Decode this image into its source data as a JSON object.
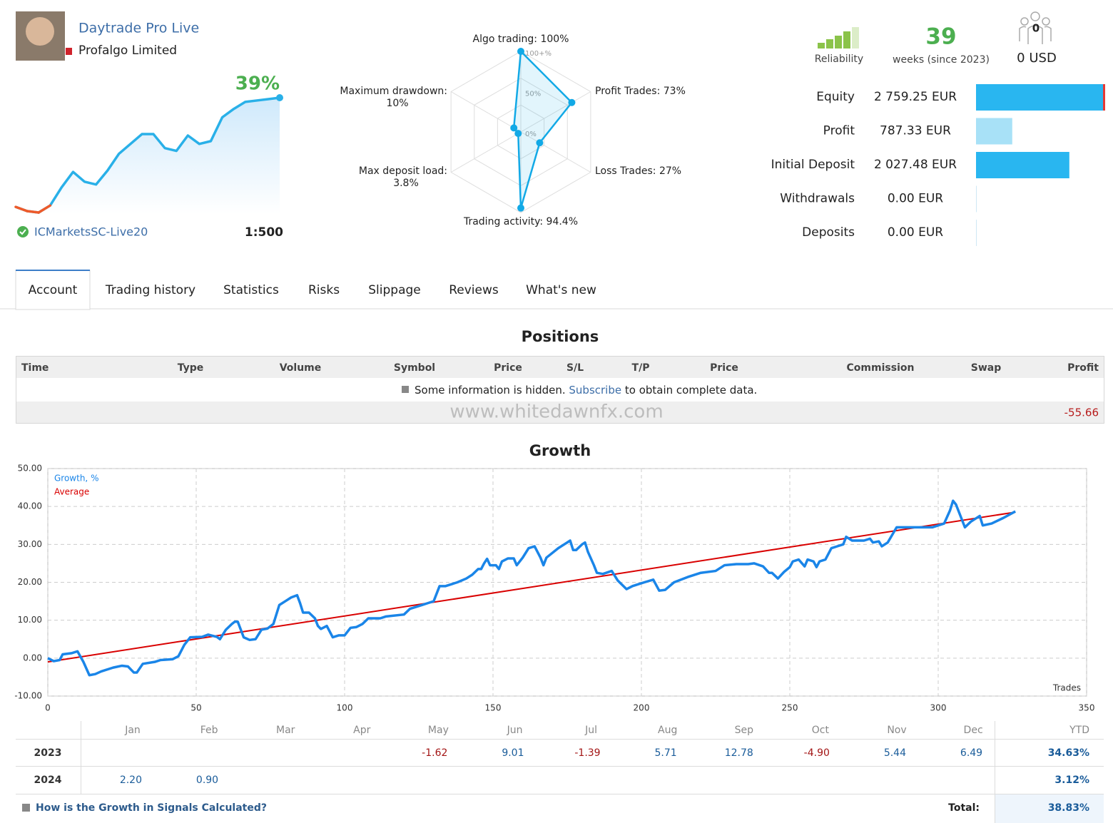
{
  "header": {
    "name": "Daytrade Pro Live",
    "company": "Profalgo Limited",
    "growth": "39%",
    "broker": "ICMarketsSC-Live20",
    "leverage": "1:500"
  },
  "sparkline": {
    "type": "line",
    "color": "#29b0e8",
    "loss_color": "#ee5a2a",
    "values": [
      0,
      -1.5,
      -2,
      0.5,
      7,
      12.5,
      9,
      8,
      13,
      19,
      22.5,
      26,
      26,
      21,
      20,
      25.5,
      22.5,
      23.5,
      32,
      35,
      37.5,
      38,
      38.5,
      39
    ]
  },
  "radar": {
    "type": "radar",
    "color": "#12a9e6",
    "axes": [
      "Algo trading:",
      "Profit Trades:",
      "Loss Trades:",
      "Trading activity:",
      "Max deposit load:",
      "Maximum drawdown:"
    ],
    "values": [
      100,
      73,
      27,
      94.4,
      3.8,
      10
    ],
    "value_labels": [
      "100%",
      "73%",
      "27%",
      "94.4%",
      "3.8%",
      "10%"
    ],
    "ring_labels": [
      "100+%",
      "50%",
      "0%"
    ]
  },
  "stats": {
    "reliability": "Reliability",
    "weeks": "39",
    "weeks_label": "weeks (since 2023)",
    "subscribers": "0",
    "funds": "0 USD"
  },
  "balance": {
    "type": "bar",
    "categories": [
      "Equity",
      "Profit",
      "Initial Deposit",
      "Withdrawals",
      "Deposits"
    ],
    "values": [
      2759.25,
      787.33,
      2027.48,
      0,
      0
    ],
    "value_labels": [
      "2 759.25 EUR",
      "787.33 EUR",
      "2 027.48 EUR",
      "0.00 EUR",
      "0.00 EUR"
    ],
    "colors": [
      "#29b6f0",
      "#a8e1f7",
      "#29b6f0",
      "#29b6f0",
      "#29b6f0"
    ]
  },
  "tabs": [
    "Account",
    "Trading history",
    "Statistics",
    "Risks",
    "Slippage",
    "Reviews",
    "What's new"
  ],
  "positions": {
    "title": "Positions",
    "columns": [
      "Time",
      "Type",
      "Volume",
      "Symbol",
      "Price",
      "S/L",
      "T/P",
      "Price",
      "Commission",
      "Swap",
      "Profit"
    ],
    "notice": {
      "before": "Some information is hidden.",
      "link": "Subscribe",
      "after": "to obtain complete data."
    },
    "watermark": "www.whitedawnfx.com",
    "total_profit": "-55.66"
  },
  "chart_data": {
    "type": "line",
    "title": "Growth",
    "x_label": "Trades",
    "xlim": [
      0,
      350
    ],
    "xticks": [
      0,
      50,
      100,
      150,
      200,
      250,
      300,
      350
    ],
    "ylim": [
      -10,
      50
    ],
    "yticks": [
      {
        "value": -10,
        "label": "-10.00"
      },
      {
        "value": 0,
        "label": "0.00"
      },
      {
        "value": 10,
        "label": "10.00"
      },
      {
        "value": 20,
        "label": "20.00"
      },
      {
        "value": 30,
        "label": "30.00"
      },
      {
        "value": 40,
        "label": "40.00"
      },
      {
        "value": 50,
        "label": "50.00"
      }
    ],
    "grid": true,
    "series": [
      {
        "name": "Growth, %",
        "color": "#1a85e8",
        "x": [
          0,
          2,
          4,
          5,
          8,
          10,
          12,
          14,
          16,
          18,
          22,
          25,
          27,
          29,
          30,
          32,
          36,
          38,
          42,
          44,
          46,
          48,
          52,
          54,
          57,
          58,
          60,
          62,
          63,
          64,
          66,
          68,
          70,
          72,
          74,
          76,
          78,
          80,
          82,
          84,
          85,
          86,
          88,
          90,
          91,
          92,
          94,
          96,
          98,
          100,
          102,
          104,
          106,
          108,
          112,
          114,
          120,
          122,
          124,
          126,
          128,
          130,
          132,
          134,
          136,
          138,
          141,
          143,
          145,
          146,
          147,
          148,
          149,
          151,
          152,
          153,
          155,
          157,
          158,
          160,
          162,
          164,
          166,
          167,
          168,
          172,
          174,
          176,
          177,
          178,
          180,
          181,
          182,
          184,
          185,
          187,
          190,
          192,
          195,
          197,
          201,
          204,
          206,
          208,
          211,
          216,
          220,
          225,
          228,
          232,
          236,
          238,
          241,
          243,
          244,
          246,
          248,
          250,
          251,
          253,
          255,
          256,
          258,
          259,
          260,
          262,
          264,
          266,
          268,
          269,
          271,
          275,
          277,
          278,
          280,
          281,
          283,
          286,
          290,
          298,
          302,
          304,
          305,
          306,
          308,
          309,
          311,
          314,
          315,
          318,
          322,
          326
        ],
        "values": [
          0,
          -0.8,
          -0.5,
          1,
          1.3,
          1.8,
          -1,
          -4.5,
          -4.2,
          -3.5,
          -2.5,
          -2,
          -2.2,
          -3.8,
          -3.8,
          -1.5,
          -1,
          -0.5,
          -0.3,
          0.5,
          3.5,
          5.5,
          5.6,
          6.2,
          5.6,
          5,
          7.5,
          9,
          9.6,
          9.6,
          5.5,
          4.8,
          5,
          7.5,
          7.8,
          9,
          14,
          15,
          16,
          16.6,
          14.5,
          12,
          12,
          10.5,
          8.5,
          7.7,
          8.5,
          5.5,
          6,
          6,
          8,
          8.2,
          9,
          10.5,
          10.5,
          11,
          11.5,
          13,
          13.5,
          14,
          14.5,
          15,
          19,
          19,
          19.5,
          20,
          21,
          22,
          23.5,
          23.5,
          25,
          26.2,
          24.5,
          24.5,
          23.5,
          25.5,
          26.3,
          26.3,
          24.5,
          26.5,
          29,
          29.5,
          26.5,
          24.5,
          26.5,
          29,
          30,
          31,
          28.5,
          28.5,
          30,
          30.5,
          28,
          24.5,
          22.5,
          22.2,
          23,
          20.5,
          18.2,
          19,
          20,
          20.7,
          17.8,
          18,
          20,
          21.5,
          22.5,
          23,
          24.5,
          24.8,
          24.8,
          25,
          24.2,
          22.5,
          22.5,
          21,
          22.7,
          24,
          25.5,
          26,
          24.2,
          26,
          25.5,
          24,
          25.5,
          26,
          29,
          29.5,
          30,
          32,
          31,
          31,
          31.5,
          30.5,
          30.8,
          29.5,
          30.5,
          34.5,
          34.5,
          34.5,
          35.5,
          39,
          41.5,
          40.5,
          36.5,
          34.5,
          36,
          37.5,
          35,
          35.5,
          37,
          38.7
        ]
      },
      {
        "name": "Average",
        "color": "#d90000",
        "x": [
          0,
          326
        ],
        "values": [
          -1,
          38.5
        ]
      }
    ]
  },
  "monthly": {
    "columns": [
      "Jan",
      "Feb",
      "Mar",
      "Apr",
      "May",
      "Jun",
      "Jul",
      "Aug",
      "Sep",
      "Oct",
      "Nov",
      "Dec",
      "YTD"
    ],
    "rows": [
      {
        "year": "2023",
        "cells": [
          null,
          null,
          null,
          null,
          "-1.62",
          "9.01",
          "-1.39",
          "5.71",
          "12.78",
          "-4.90",
          "5.44",
          "6.49"
        ],
        "ytd": "34.63%"
      },
      {
        "year": "2024",
        "cells": [
          "2.20",
          "0.90",
          null,
          null,
          null,
          null,
          null,
          null,
          null,
          null,
          null,
          null
        ],
        "ytd": "3.12%"
      }
    ],
    "footer": {
      "link": "How is the Growth in Signals Calculated?",
      "total_label": "Total:",
      "total": "38.83%"
    }
  }
}
